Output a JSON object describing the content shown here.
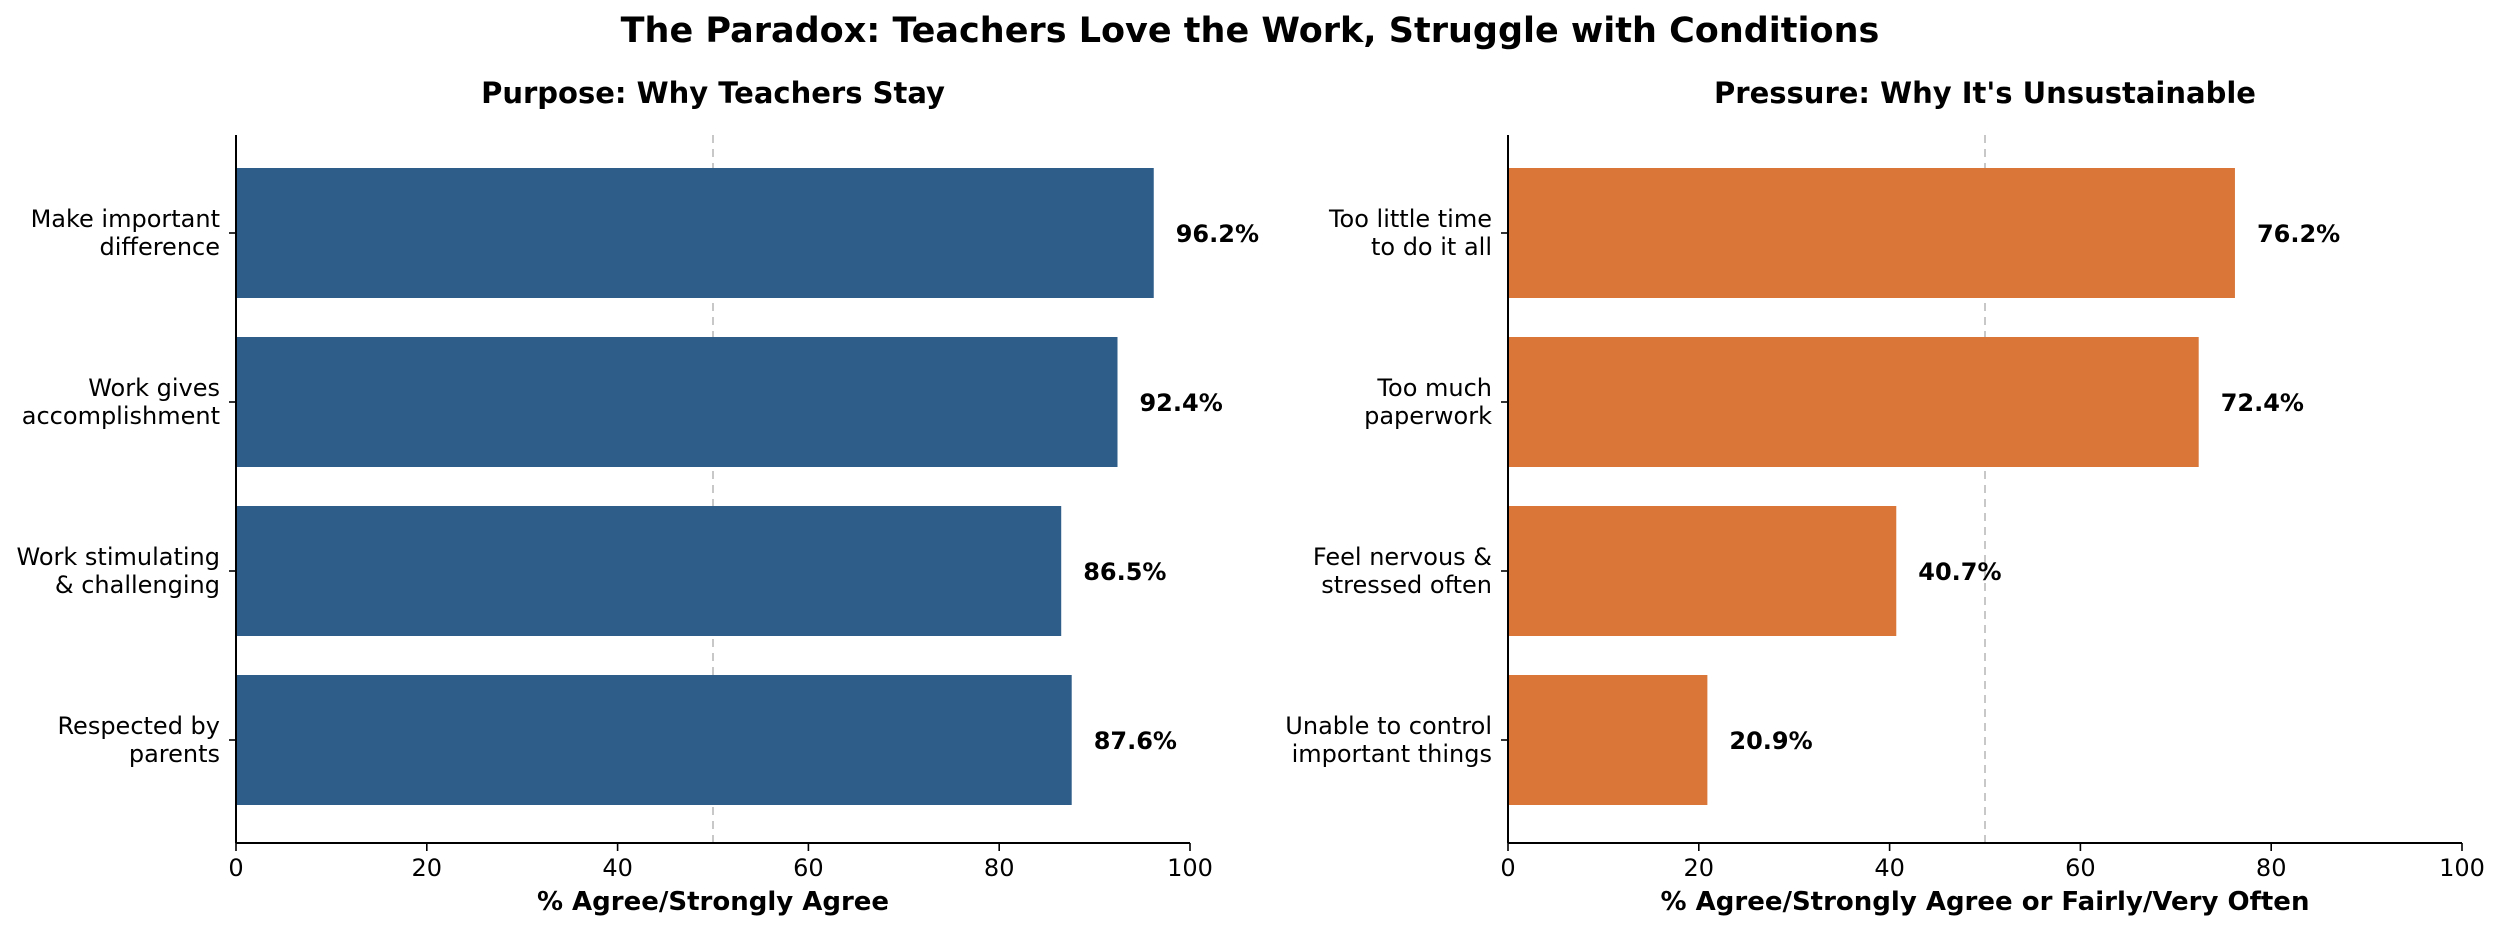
{
  "figure": {
    "title": "The Paradox: Teachers Love the Work, Struggle with Conditions"
  },
  "chart_data": [
    {
      "type": "bar",
      "orientation": "horizontal",
      "title": "Purpose: Why Teachers Stay",
      "xlabel": "% Agree/Strongly Agree",
      "ylabel": "",
      "categories": [
        [
          "Make important",
          "difference"
        ],
        [
          "Work gives",
          "accomplishment"
        ],
        [
          "Work stimulating",
          "& challenging"
        ],
        [
          "Respected by",
          "parents"
        ]
      ],
      "values": [
        96.2,
        92.4,
        86.5,
        87.6
      ],
      "value_labels": [
        "96.2%",
        "92.4%",
        "86.5%",
        "87.6%"
      ],
      "xlim": [
        0,
        100
      ],
      "xticks": [
        0,
        20,
        40,
        60,
        80,
        100
      ],
      "reference_line": 50,
      "bar_color": "#2e5d8a",
      "grid": false
    },
    {
      "type": "bar",
      "orientation": "horizontal",
      "title": "Pressure: Why It's Unsustainable",
      "xlabel": "% Agree/Strongly Agree or Fairly/Very Often",
      "ylabel": "",
      "categories": [
        [
          "Too little time",
          "to do it all"
        ],
        [
          "Too much",
          "paperwork"
        ],
        [
          "Feel nervous &",
          "stressed often"
        ],
        [
          "Unable to control",
          "important things"
        ]
      ],
      "values": [
        76.2,
        72.4,
        40.7,
        20.9
      ],
      "value_labels": [
        "76.2%",
        "72.4%",
        "40.7%",
        "20.9%"
      ],
      "xlim": [
        0,
        100
      ],
      "xticks": [
        0,
        20,
        40,
        60,
        80,
        100
      ],
      "reference_line": 50,
      "bar_color": "#d97638",
      "grid": false
    }
  ]
}
